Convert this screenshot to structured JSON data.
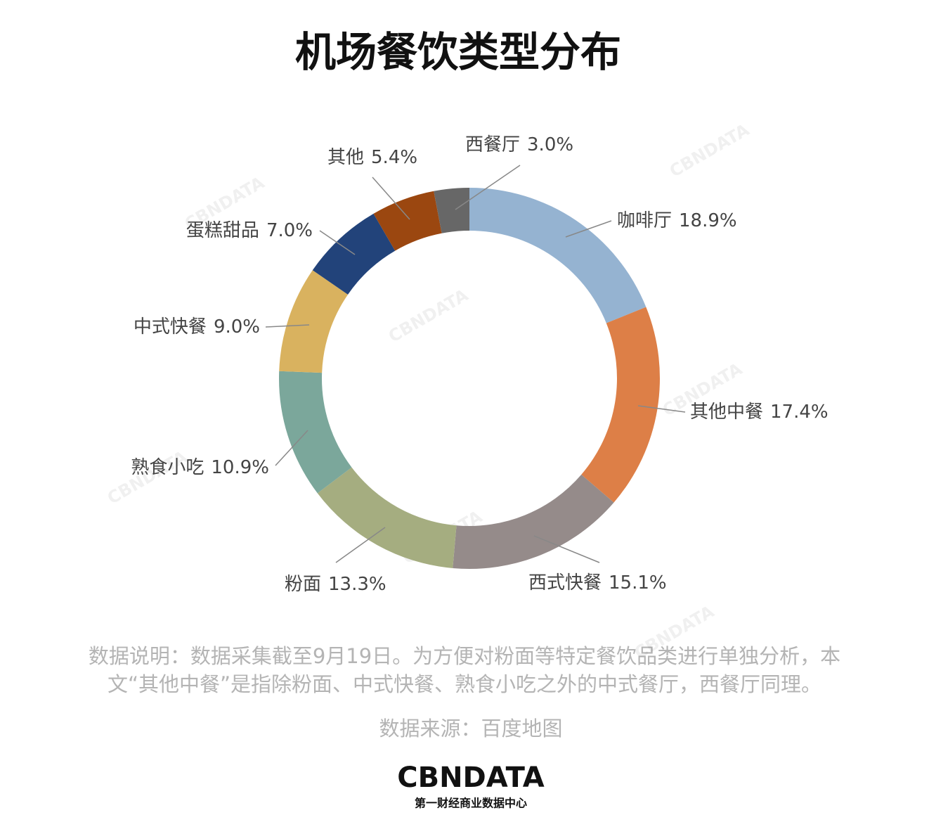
{
  "chart_data": {
    "type": "pie",
    "donut": true,
    "title": "机场餐饮类型分布",
    "categories": [
      "咖啡厅",
      "其他中餐",
      "西式快餐",
      "粉面",
      "熟食小吃",
      "中式快餐",
      "蛋糕甜品",
      "其他",
      "西餐厅"
    ],
    "values": [
      18.9,
      17.4,
      15.1,
      13.3,
      10.9,
      9.0,
      7.0,
      5.4,
      3.0
    ],
    "value_labels": [
      "18.9%",
      "17.4%",
      "15.1%",
      "13.3%",
      "10.9%",
      "9.0%",
      "7.0%",
      "5.4%",
      "3.0%"
    ],
    "colors": [
      "#95b3d1",
      "#dd7f47",
      "#958b8a",
      "#a5ad80",
      "#7ba79b",
      "#d9b25f",
      "#22437a",
      "#9b4710",
      "#676767"
    ]
  },
  "notes": [
    "数据说明：数据采集截至9月19日。为方便对粉面等特定餐饮品类进行单独分析，本",
    "文“其他中餐”是指除粉面、中式快餐、熟食小吃之外的中式餐厅，西餐厅同理。"
  ],
  "source": "数据来源：百度地图",
  "logo": "CBNDATA",
  "logo_subtitle": "第一财经商业数据中心"
}
